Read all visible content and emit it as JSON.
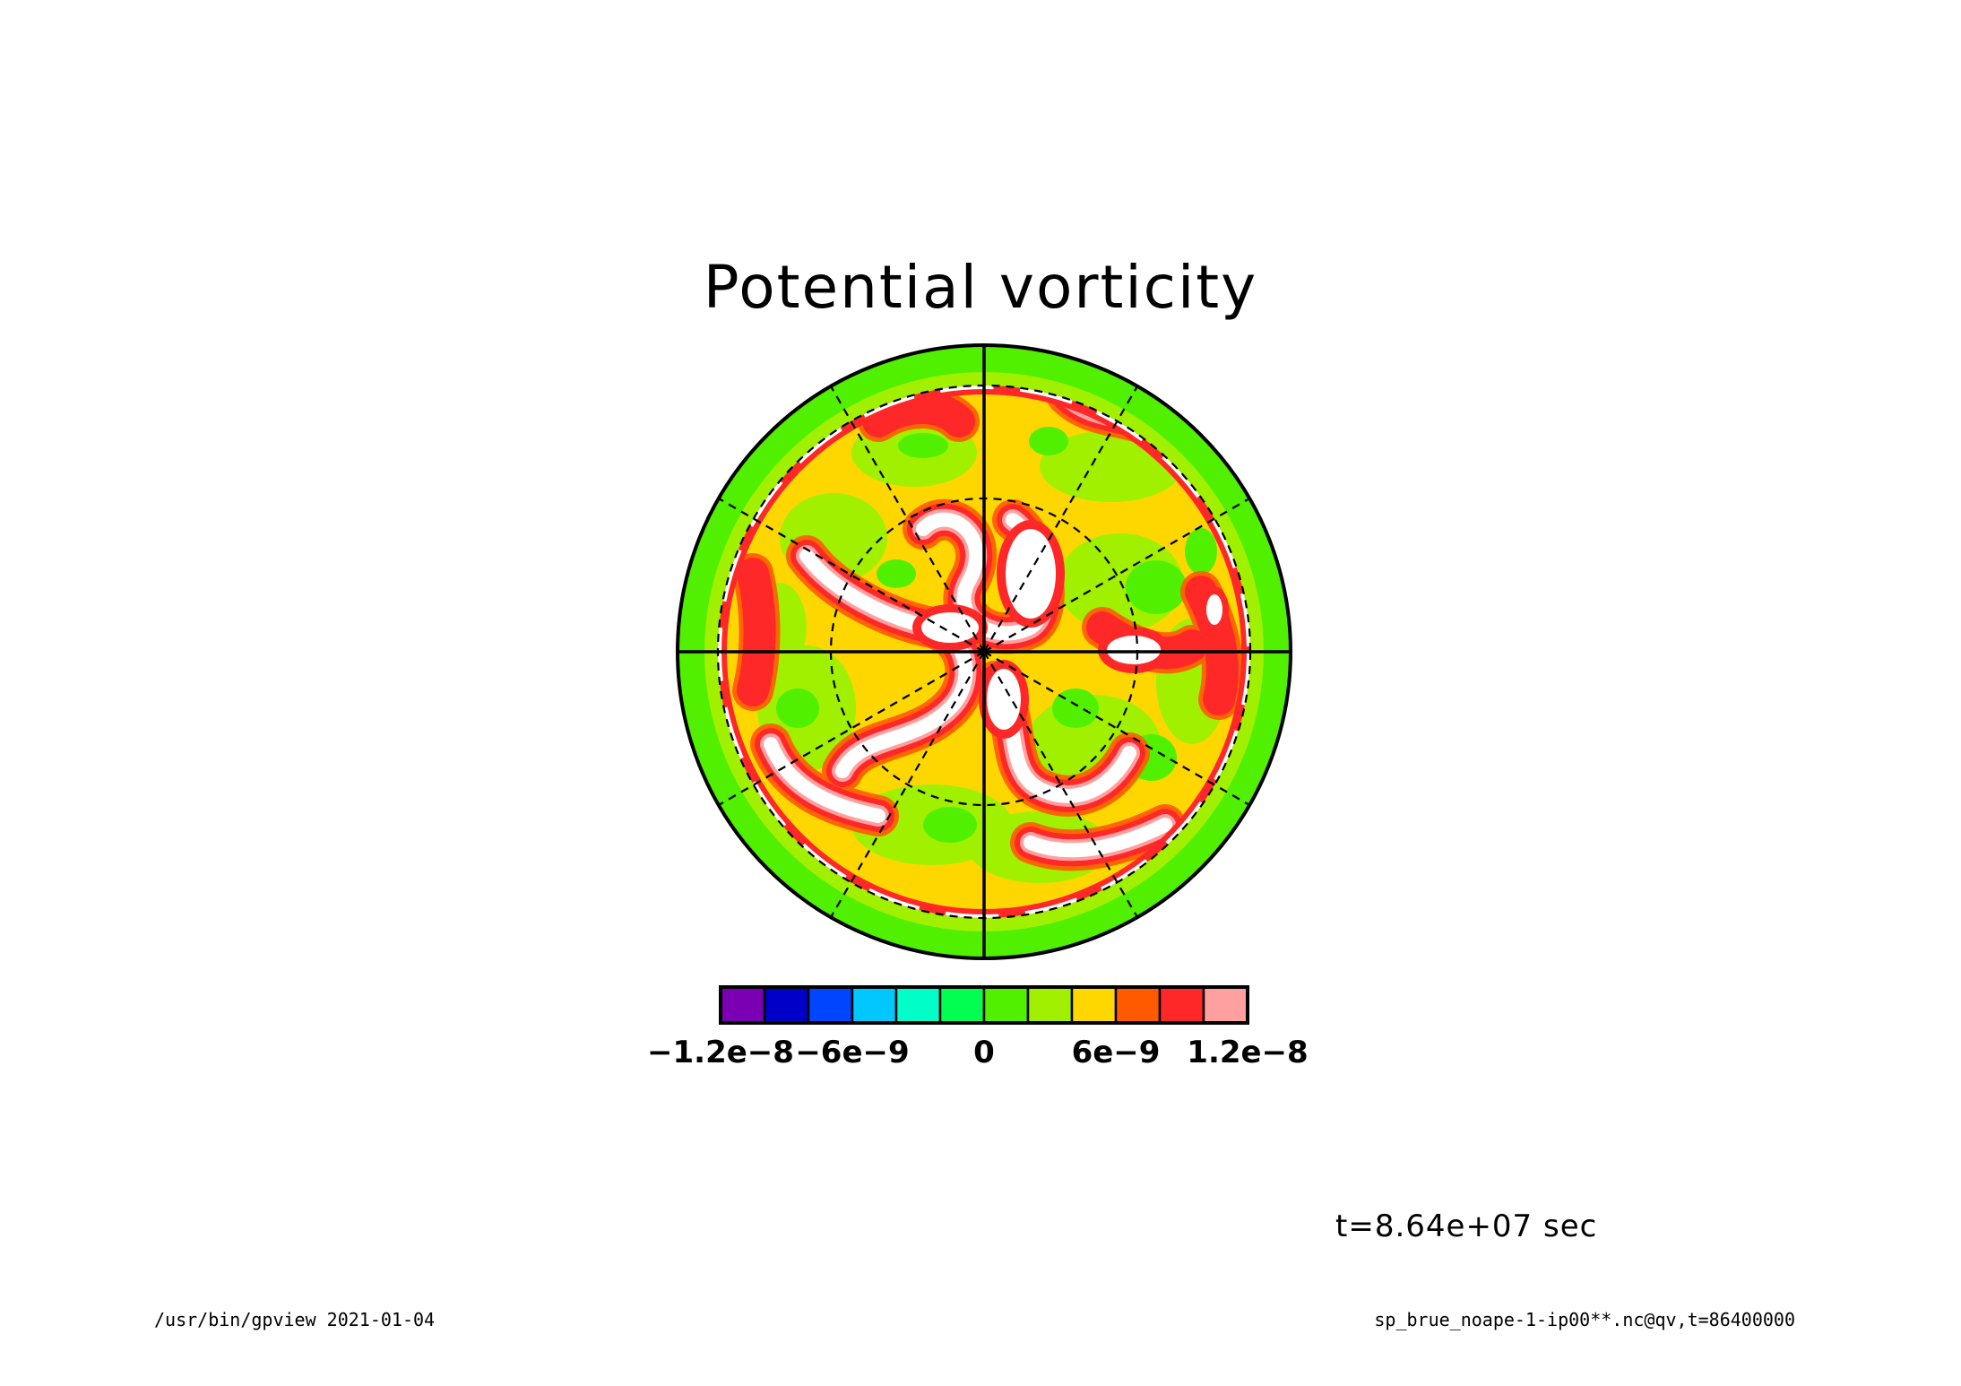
{
  "chart_data": {
    "type": "heatmap",
    "projection": "polar-stereographic",
    "title": "Potential vorticity",
    "colorbar": {
      "levels": [
        -1.2e-08,
        -1e-08,
        -8e-09,
        -6e-09,
        -4e-09,
        -2e-09,
        0,
        2e-09,
        4e-09,
        6e-09,
        8e-09,
        1e-08,
        1.2e-08
      ],
      "colors": [
        "#7b00b4",
        "#0000c8",
        "#0046ff",
        "#00c8ff",
        "#00ffc8",
        "#00ff50",
        "#50f000",
        "#a0f000",
        "#ffd700",
        "#ff5a00",
        "#ff2828",
        "#ffa0a0"
      ],
      "tick_values": [
        -1.2e-08,
        -6e-09,
        0,
        6e-09,
        1.2e-08
      ],
      "tick_labels": [
        "−1.2e−8",
        "−6e−9",
        "0",
        "6e−9",
        "1.2e−8"
      ]
    },
    "grid": true,
    "latitude_circles": 3,
    "meridians_solid": 4,
    "meridians_dashed": 12
  },
  "annotations": {
    "time": "t=8.64e+07 sec",
    "footer_left": "/usr/bin/gpview   2021-01-04",
    "footer_right": "sp_brue_noape-1-ip00**.nc@qv,t=86400000"
  }
}
